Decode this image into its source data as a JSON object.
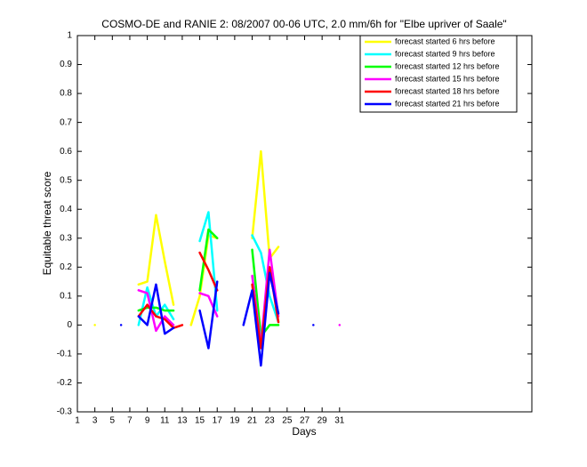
{
  "chart_data": {
    "type": "line",
    "title": "COSMO-DE and RANIE 2: 08/2007 00-06 UTC, 2.0 mm/6h for \"Elbe upriver of Saale\"",
    "xlabel": "Days",
    "ylabel": "Equitable threat score",
    "x": [
      1,
      2,
      3,
      4,
      5,
      6,
      7,
      8,
      9,
      10,
      11,
      12,
      13,
      14,
      15,
      16,
      17,
      18,
      19,
      20,
      21,
      22,
      23,
      24,
      25,
      26,
      27,
      28,
      29,
      30,
      31
    ],
    "xlim": [
      1,
      53
    ],
    "xticks": [
      1,
      3,
      5,
      7,
      9,
      11,
      13,
      15,
      17,
      19,
      21,
      23,
      25,
      27,
      29,
      31
    ],
    "ylim": [
      -0.3,
      1
    ],
    "yticks": [
      -0.3,
      -0.2,
      -0.1,
      0,
      0.1,
      0.2,
      0.3,
      0.4,
      0.5,
      0.6,
      0.7,
      0.8,
      0.9,
      1
    ],
    "legend": "top-right",
    "series": [
      {
        "name": "forecast started 6 hrs before",
        "color": "#ffff00",
        "values": [
          null,
          null,
          0,
          null,
          null,
          null,
          null,
          0.14,
          0.15,
          0.38,
          0.22,
          0.07,
          null,
          0,
          0.1,
          0.31,
          0.3,
          null,
          null,
          null,
          0.3,
          0.6,
          0.23,
          0.27,
          null,
          null,
          null,
          null,
          null,
          null,
          null
        ]
      },
      {
        "name": "forecast started 9 hrs before",
        "color": "#00ffff",
        "values": [
          null,
          null,
          null,
          null,
          null,
          null,
          null,
          0,
          0.13,
          0.03,
          0.07,
          0.02,
          null,
          null,
          0.29,
          0.39,
          0.05,
          null,
          null,
          null,
          0.31,
          0.25,
          0.1,
          0.01,
          null,
          null,
          null,
          null,
          null,
          null,
          null
        ]
      },
      {
        "name": "forecast started 12 hrs before",
        "color": "#00ff00",
        "values": [
          null,
          null,
          null,
          null,
          null,
          null,
          null,
          0.05,
          0.06,
          0.06,
          0.05,
          0.05,
          null,
          null,
          0.12,
          0.33,
          0.3,
          null,
          null,
          null,
          0.26,
          -0.04,
          0,
          0,
          null,
          null,
          null,
          null,
          null,
          null,
          null
        ]
      },
      {
        "name": "forecast started 15 hrs before",
        "color": "#ff00ff",
        "values": [
          null,
          null,
          null,
          null,
          null,
          null,
          null,
          0.12,
          0.11,
          -0.02,
          0.03,
          0,
          null,
          null,
          0.11,
          0.1,
          0.03,
          null,
          null,
          null,
          0.17,
          -0.07,
          0.26,
          0.03,
          null,
          null,
          null,
          null,
          null,
          null,
          0
        ]
      },
      {
        "name": "forecast started 18 hrs before",
        "color": "#ff0000",
        "values": [
          null,
          null,
          null,
          null,
          null,
          null,
          null,
          0.03,
          0.07,
          0.03,
          0.02,
          -0.01,
          0,
          null,
          0.25,
          0.19,
          0.12,
          null,
          null,
          null,
          0.14,
          -0.08,
          0.2,
          0.01,
          null,
          null,
          null,
          null,
          null,
          null,
          null
        ]
      },
      {
        "name": "forecast started 21 hrs before",
        "color": "#0000ff",
        "values": [
          null,
          null,
          null,
          null,
          null,
          0,
          null,
          0.03,
          0,
          0.14,
          -0.03,
          -0.01,
          null,
          null,
          0.05,
          -0.08,
          0.15,
          null,
          null,
          0,
          0.12,
          -0.14,
          0.18,
          0.04,
          null,
          null,
          null,
          0,
          null,
          null,
          null
        ]
      }
    ]
  }
}
